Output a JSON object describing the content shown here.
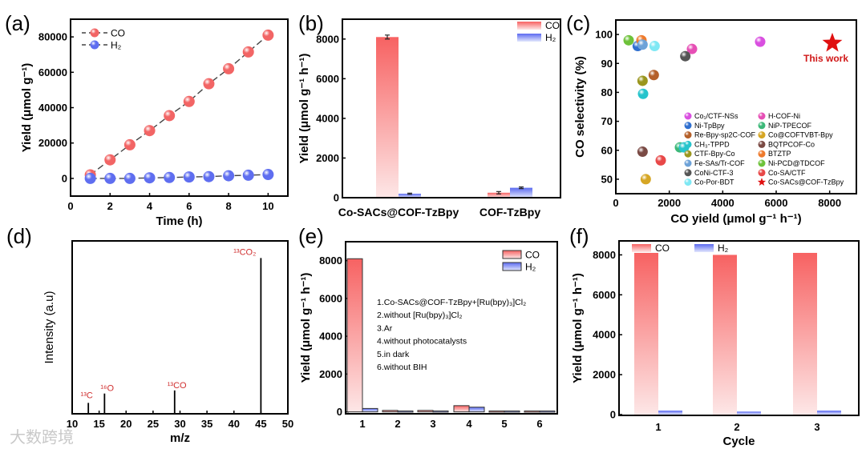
{
  "watermark": "大数跨境",
  "colors": {
    "co": "#f26565",
    "h2": "#5f6ef0",
    "highlight": "#e01010"
  },
  "chart_data": [
    {
      "panel_label": "(a)",
      "type": "line",
      "xlabel": "Time (h)",
      "ylabel": "Yield (μmol g⁻¹)",
      "xlim": [
        0,
        11
      ],
      "ylim": [
        -10000,
        90000
      ],
      "xticks": [
        0,
        2,
        4,
        6,
        8,
        10
      ],
      "yticks": [
        0,
        20000,
        40000,
        60000,
        80000
      ],
      "legend": "top-left",
      "series": [
        {
          "name": "CO",
          "color": "#f26565",
          "x": [
            1,
            2,
            3,
            4,
            5,
            6,
            7,
            8,
            9,
            10
          ],
          "y": [
            2000,
            10500,
            19000,
            27000,
            35500,
            43500,
            53500,
            62000,
            71500,
            81000
          ]
        },
        {
          "name": "H₂",
          "color": "#5f6ef0",
          "x": [
            1,
            2,
            3,
            4,
            5,
            6,
            7,
            8,
            9,
            10
          ],
          "y": [
            0,
            0,
            0,
            300,
            500,
            800,
            1000,
            1500,
            1800,
            2200
          ]
        }
      ]
    },
    {
      "panel_label": "(b)",
      "type": "bar",
      "xlabel": "",
      "ylabel": "Yield (μmol g⁻¹ h⁻¹)",
      "ylim": [
        0,
        9000
      ],
      "yticks": [
        0,
        2000,
        4000,
        6000,
        8000
      ],
      "categories": [
        "Co-SACs@COF-TzBpy",
        "COF-TzBpy"
      ],
      "legend": "top-right",
      "series": [
        {
          "name": "CO",
          "values": [
            8100,
            250
          ],
          "errors": [
            100,
            60
          ]
        },
        {
          "name": "H₂",
          "values": [
            200,
            500
          ],
          "errors": [
            30,
            40
          ]
        }
      ]
    },
    {
      "panel_label": "(c)",
      "type": "scatter",
      "xlabel": "CO yield (μmol g⁻¹ h⁻¹)",
      "ylabel": "CO selectivity (%)",
      "xlim": [
        0,
        9000
      ],
      "ylim": [
        45,
        105
      ],
      "xticks": [
        0,
        2000,
        4000,
        6000,
        8000
      ],
      "yticks": [
        50,
        60,
        70,
        80,
        90,
        100
      ],
      "legend": "bottom-right",
      "annotation": "This work",
      "series": [
        {
          "name": "Co₁/CTF-NSs",
          "color": "#d94fe0",
          "points": [
            [
              5400,
              97.5
            ]
          ]
        },
        {
          "name": "H-COF-Ni",
          "color": "#e64fb5",
          "points": [
            [
              2850,
              95
            ]
          ]
        },
        {
          "name": "Ni-TpBpy",
          "color": "#2f6fcf",
          "points": [
            [
              820,
              96
            ]
          ]
        },
        {
          "name": "NiP-TPECOF",
          "color": "#3cb878",
          "points": [
            [
              2400,
              61
            ]
          ]
        },
        {
          "name": "Re-Bpy-sp2C-COF",
          "color": "#b5602a",
          "points": [
            [
              1420,
              86
            ]
          ]
        },
        {
          "name": "Co@COFTVBT-Bpy",
          "color": "#d6a624",
          "points": [
            [
              1120,
              50
            ]
          ]
        },
        {
          "name": "CH₃-TPPD",
          "color": "#26c4cc",
          "points": [
            [
              2550,
              61
            ],
            [
              1020,
              79.5
            ]
          ]
        },
        {
          "name": "BQTPCOF-Co",
          "color": "#7a4a44",
          "points": [
            [
              1000,
              59.5
            ]
          ]
        },
        {
          "name": "CTF-Bpy-Co",
          "color": "#9a961e",
          "points": [
            [
              1000,
              84
            ]
          ]
        },
        {
          "name": "BTZTP",
          "color": "#ee7a2c",
          "points": [
            [
              960,
              98
            ]
          ]
        },
        {
          "name": "Fe-SAs/Tr-COF",
          "color": "#6da2d8",
          "points": [
            [
              1000,
              96.5
            ]
          ]
        },
        {
          "name": "Ni-PCD@TDCOF",
          "color": "#6ec23a",
          "points": [
            [
              480,
              98
            ]
          ]
        },
        {
          "name": "CoNi-CTF-3",
          "color": "#555555",
          "points": [
            [
              2600,
              92.5
            ]
          ]
        },
        {
          "name": "Co-SA/CTF",
          "color": "#e84848",
          "points": [
            [
              1680,
              56.5
            ]
          ]
        },
        {
          "name": "Co-Por-BDT",
          "color": "#7fe8f4",
          "points": [
            [
              1450,
              96
            ]
          ]
        },
        {
          "name": "Co-SACs@COF-TzBpy",
          "color": "#e01010",
          "marker": "star",
          "points": [
            [
              8100,
              97
            ]
          ]
        }
      ]
    },
    {
      "panel_label": "(d)",
      "type": "bar",
      "xlabel": "m/z",
      "ylabel": "Intensity (a.u)",
      "xlim": [
        10,
        50
      ],
      "ylim": [
        0,
        111
      ],
      "xticks": [
        10,
        15,
        20,
        25,
        30,
        35,
        40,
        45,
        50
      ],
      "yticks": [],
      "peaks": [
        {
          "mz": 13,
          "intensity": 7,
          "label": "¹³C"
        },
        {
          "mz": 16,
          "intensity": 13,
          "label": "¹⁶O"
        },
        {
          "mz": 29,
          "intensity": 15,
          "label": "¹³CO"
        },
        {
          "mz": 45,
          "intensity": 100,
          "label": "¹³CO₂"
        }
      ]
    },
    {
      "panel_label": "(e)",
      "type": "bar",
      "xlabel": "",
      "ylabel": "Yield (μmol g⁻¹ h⁻¹)",
      "ylim": [
        -100,
        9000
      ],
      "yticks": [
        0,
        2000,
        4000,
        6000,
        8000
      ],
      "categories": [
        "1",
        "2",
        "3",
        "4",
        "5",
        "6"
      ],
      "legend": "top-right",
      "series": [
        {
          "name": "CO",
          "values": [
            8100,
            80,
            80,
            330,
            50,
            50
          ]
        },
        {
          "name": "H₂",
          "values": [
            180,
            50,
            50,
            250,
            50,
            50
          ]
        }
      ],
      "annotations": [
        "1.Co-SACs@COF-TzBpy+[Ru(bpy)₃]Cl₂",
        "2.without [Ru(bpy)₃]Cl₂",
        "3.Ar",
        "4.without photocatalysts",
        "5.in dark",
        "6.without BIH"
      ]
    },
    {
      "panel_label": "(f)",
      "type": "bar",
      "xlabel": "Cycle",
      "ylabel": "Yield (μmol g⁻¹ h⁻¹)",
      "ylim": [
        -40,
        8700
      ],
      "yticks": [
        0,
        2000,
        4000,
        6000,
        8000
      ],
      "categories": [
        "1",
        "2",
        "3"
      ],
      "legend": "top",
      "series": [
        {
          "name": "CO",
          "values": [
            8100,
            8000,
            8100
          ]
        },
        {
          "name": "H₂",
          "values": [
            200,
            150,
            200
          ]
        }
      ]
    }
  ]
}
